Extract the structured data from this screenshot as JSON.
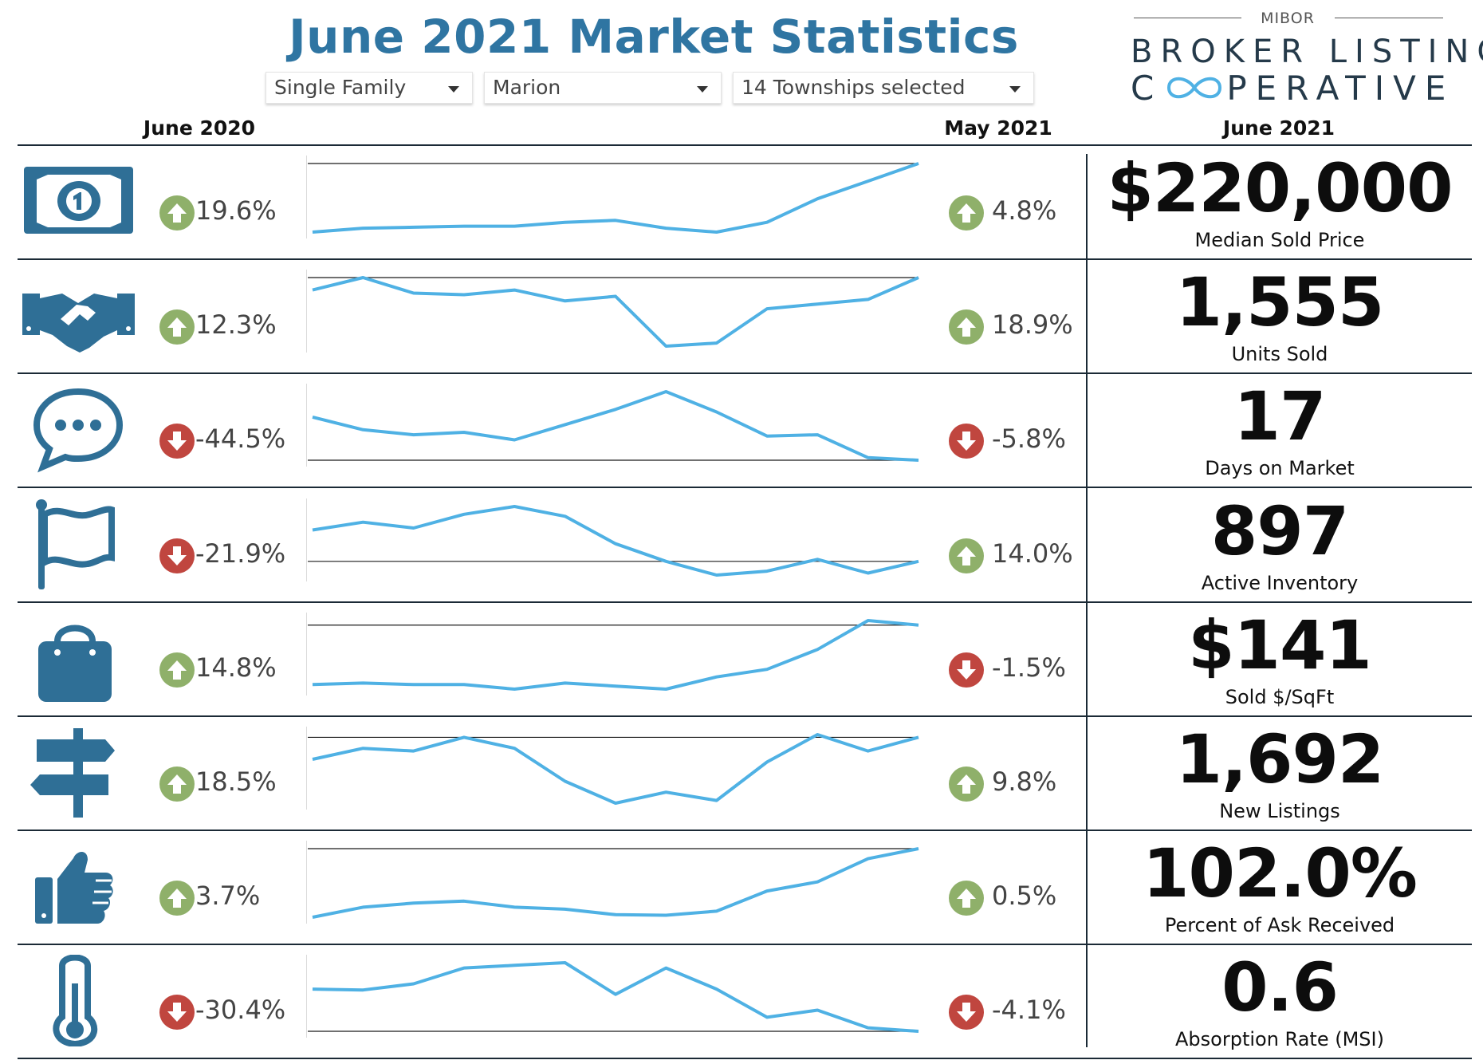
{
  "header": {
    "title": "June 2021 Market Statistics",
    "filters": [
      {
        "value": "Single Family"
      },
      {
        "value": "Marion"
      },
      {
        "value": "14 Townships selected"
      }
    ]
  },
  "logo": {
    "small": "MIBOR",
    "line1": "BROKER LISTING",
    "line2_start": "C",
    "line2_end": "PERATIVE"
  },
  "columns": {
    "left": "June 2020",
    "middle": "May 2021",
    "right": "June 2021"
  },
  "colors": {
    "accent": "#2f75a2",
    "line": "#4fb1e4",
    "up": "#8fb06a",
    "down": "#c0463f",
    "rule": "#1b2a36"
  },
  "metrics": [
    {
      "icon": "dollar-bill-icon",
      "yoy_dir": "up",
      "yoy": "19.6%",
      "mom_dir": "up",
      "mom": "4.8%",
      "value": "$220,000",
      "label": "Median Sold Price",
      "trend": [
        3,
        5,
        5.5,
        6,
        6,
        8,
        9,
        5,
        3,
        8,
        20,
        29,
        38
      ]
    },
    {
      "icon": "handshake-icon",
      "yoy_dir": "up",
      "yoy": "12.3%",
      "mom_dir": "up",
      "mom": "18.9%",
      "value": "1,555",
      "label": "Units Sold",
      "trend": [
        28,
        32,
        27,
        26.5,
        28,
        24.5,
        26,
        10,
        11,
        22,
        23.5,
        25,
        32
      ]
    },
    {
      "icon": "chat-bubble-icon",
      "yoy_dir": "down",
      "yoy": "-44.5%",
      "mom_dir": "down",
      "mom": "-5.8%",
      "value": "17",
      "label": "Days on Market",
      "trend": [
        24,
        19,
        17,
        18,
        15,
        21,
        27,
        34,
        26,
        16.5,
        17,
        8,
        7
      ]
    },
    {
      "icon": "flag-icon",
      "yoy_dir": "down",
      "yoy": "-21.9%",
      "mom_dir": "up",
      "mom": "14.0%",
      "value": "897",
      "label": "Active Inventory",
      "trend": [
        27,
        31,
        28,
        35,
        39,
        34,
        20,
        11,
        4,
        6,
        12,
        5,
        11
      ]
    },
    {
      "icon": "shopping-bag-icon",
      "yoy_dir": "up",
      "yoy": "14.8%",
      "mom_dir": "down",
      "mom": "-1.5%",
      "value": "$141",
      "label": "Sold $/SqFt",
      "trend": [
        10,
        10.5,
        10,
        10,
        8.5,
        10.5,
        9.5,
        8.5,
        12.5,
        15,
        21.5,
        31,
        29.5
      ]
    },
    {
      "icon": "signpost-icon",
      "yoy_dir": "up",
      "yoy": "18.5%",
      "mom_dir": "up",
      "mom": "9.8%",
      "value": "1,692",
      "label": "New Listings",
      "trend": [
        30,
        34,
        33,
        38,
        34,
        22,
        14,
        18,
        15,
        29,
        39,
        33,
        38
      ]
    },
    {
      "icon": "thumbs-up-icon",
      "yoy_dir": "up",
      "yoy": "3.7%",
      "mom_dir": "up",
      "mom": "0.5%",
      "value": "102.0%",
      "label": "Percent of Ask Received",
      "trend": [
        4,
        14,
        18,
        20,
        14,
        12,
        6.5,
        6,
        10,
        30,
        39,
        62,
        72
      ]
    },
    {
      "icon": "thermometer-icon",
      "yoy_dir": "down",
      "yoy": "-30.4%",
      "mom_dir": "down",
      "mom": "-4.1%",
      "value": "0.6",
      "label": "Absorption Rate (MSI)",
      "trend": [
        28,
        27.5,
        31,
        40,
        41.5,
        43,
        25,
        40,
        28,
        12,
        16,
        6,
        4
      ]
    }
  ]
}
